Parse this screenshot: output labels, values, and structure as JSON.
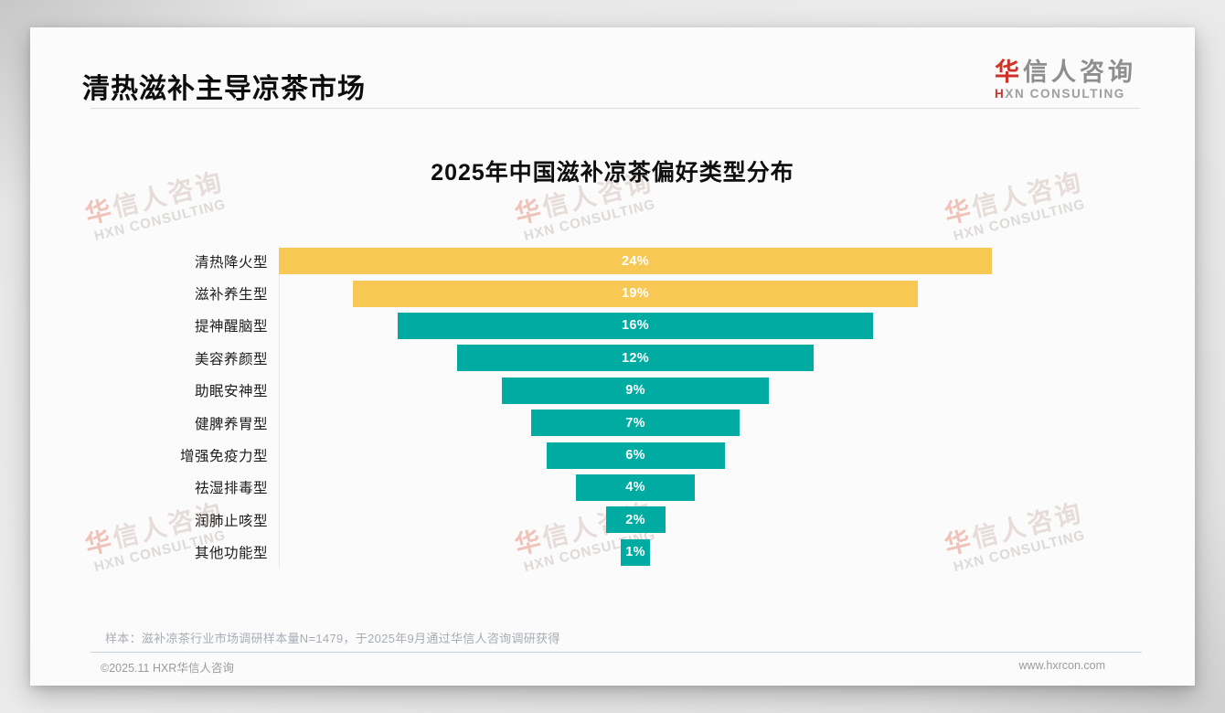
{
  "page": {
    "slide_title": "清热滋补主导凉茶市场",
    "logo": {
      "cn_accent": "华",
      "cn_rest": "信人咨询",
      "en_accent": "H",
      "en_rest": "XN CONSULTING",
      "accent_color": "#d03028"
    },
    "watermark": {
      "cn_accent": "华",
      "cn_rest": "信人咨询",
      "en": "HXN CONSULTING"
    },
    "footnote": "样本：滋补凉茶行业市场调研样本量N=1479，于2025年9月通过华信人咨询调研获得",
    "footer": {
      "copyright": "©2025.11 HXR华信人咨询",
      "website": "www.hxrcon.com"
    }
  },
  "chart_data": {
    "type": "bar",
    "variant": "centered-horizontal-funnel",
    "title": "2025年中国滋补凉茶偏好类型分布",
    "categories": [
      "清热降火型",
      "滋补养生型",
      "提神醒脑型",
      "美容养颜型",
      "助眠安神型",
      "健脾养胃型",
      "增强免疫力型",
      "祛湿排毒型",
      "润肺止咳型",
      "其他功能型"
    ],
    "values": [
      24,
      19,
      16,
      12,
      9,
      7,
      6,
      4,
      2,
      1
    ],
    "unit": "%",
    "value_labels": [
      "24%",
      "19%",
      "16%",
      "12%",
      "9%",
      "7%",
      "6%",
      "4%",
      "2%",
      "1%"
    ],
    "xlim": [
      0,
      24
    ],
    "grid": false,
    "legend": "none",
    "colors": {
      "highlight": "#F8C855",
      "default": "#00ABA1",
      "value_text": "#ffffff"
    },
    "highlight_count": 2
  }
}
